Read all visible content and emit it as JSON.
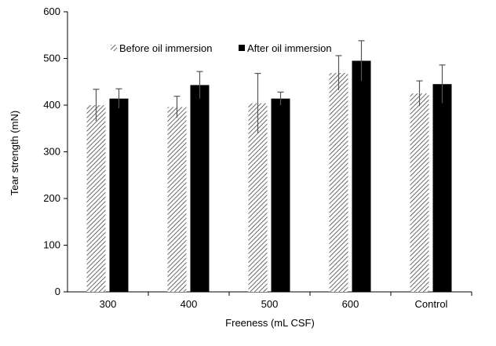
{
  "chart_data": {
    "type": "bar",
    "title": "",
    "xlabel": "Freeness (mL CSF)",
    "ylabel": "Tear strength (mN)",
    "ylim": [
      0,
      600
    ],
    "yticks": [
      0,
      100,
      200,
      300,
      400,
      500,
      600
    ],
    "categories": [
      "300",
      "400",
      "500",
      "600",
      "Control"
    ],
    "legend_position": "top-left",
    "series": [
      {
        "name": "Before oil immersion",
        "pattern": "diagonal-hatch",
        "color": "#555555",
        "values": [
          400,
          396,
          404,
          469,
          425
        ],
        "errors": [
          34,
          23,
          64,
          37,
          27
        ]
      },
      {
        "name": "After oil immersion",
        "pattern": "solid",
        "color": "#000000",
        "values": [
          414,
          443,
          414,
          495,
          445
        ],
        "errors": [
          21,
          29,
          14,
          43,
          41
        ]
      }
    ]
  }
}
